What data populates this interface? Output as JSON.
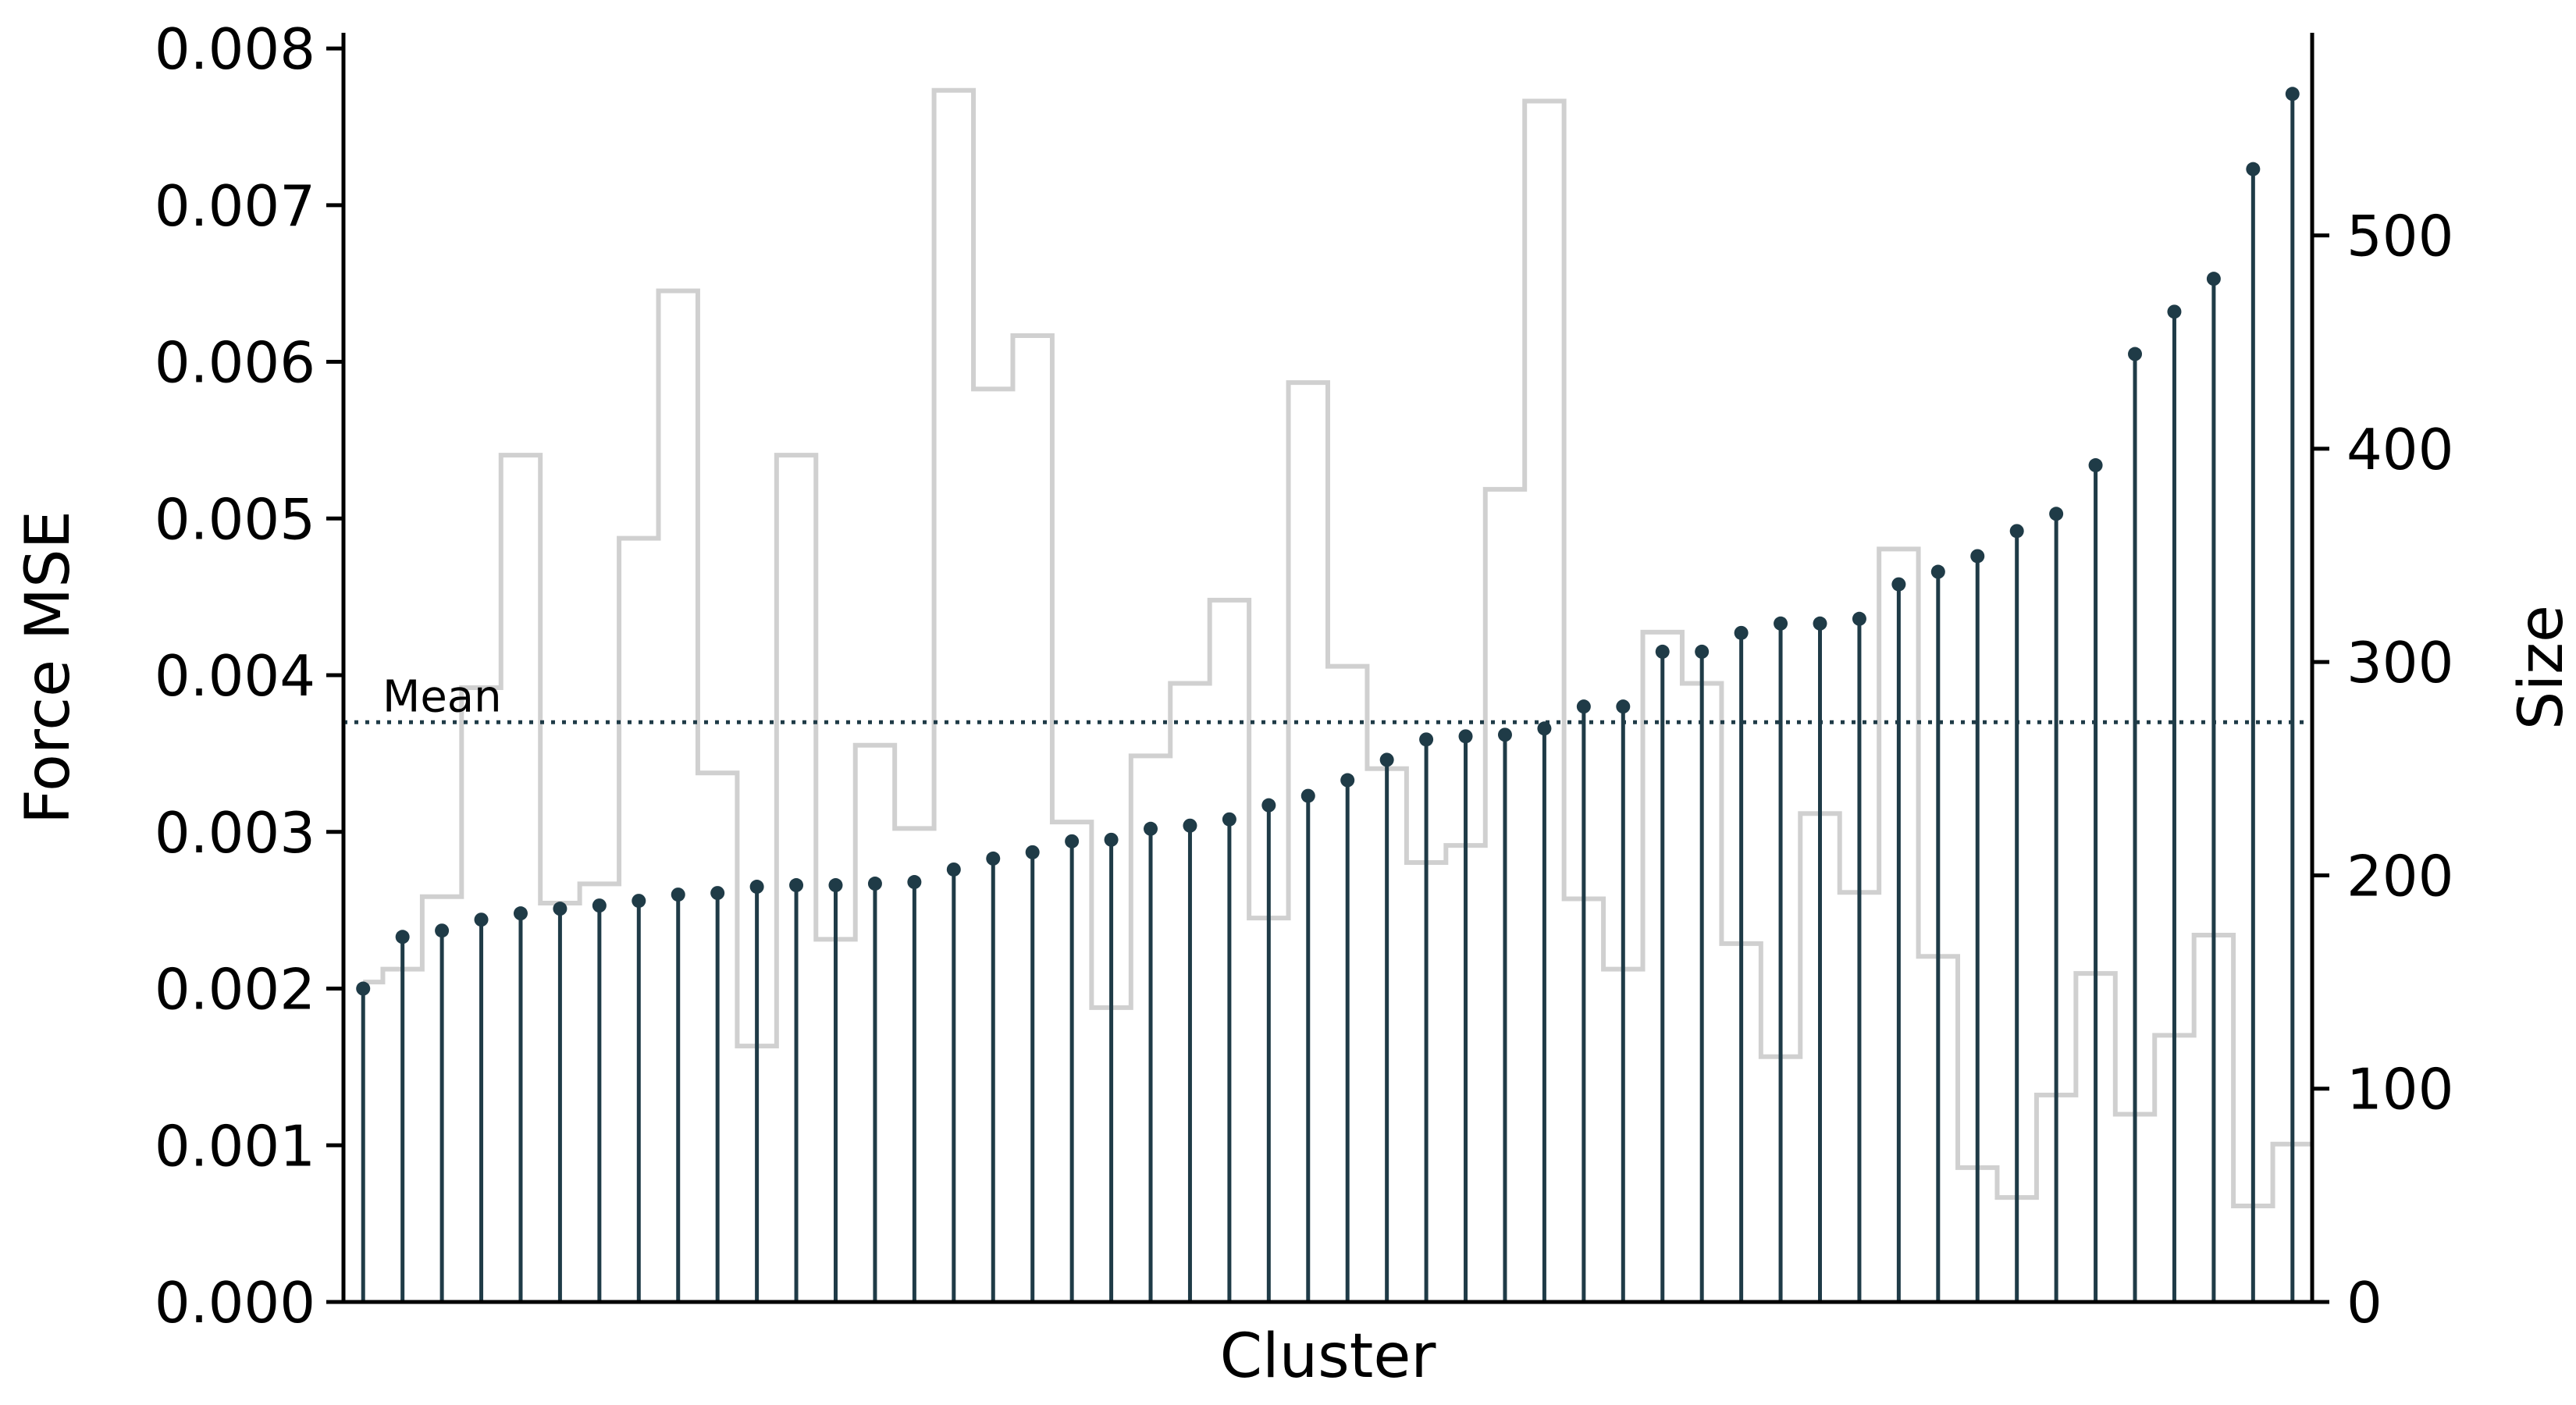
{
  "chart_data": {
    "type": "stem",
    "title": "",
    "xlabel": "Cluster",
    "ylabel": "Force MSE",
    "ylabel_right": "Size",
    "ylim": [
      0,
      0.0081
    ],
    "ylim_right": [
      0,
      595
    ],
    "yticks": [
      0,
      0.001,
      0.002,
      0.003,
      0.004,
      0.005,
      0.006,
      0.007,
      0.008
    ],
    "ytick_labels": [
      "0.000",
      "0.001",
      "0.002",
      "0.003",
      "0.004",
      "0.005",
      "0.006",
      "0.007",
      "0.008"
    ],
    "yticks_right": [
      0,
      100,
      200,
      300,
      400,
      500
    ],
    "ytick_labels_right": [
      "0",
      "100",
      "200",
      "300",
      "400",
      "500"
    ],
    "grid": false,
    "mean": {
      "label": "Mean",
      "value": 0.0037
    },
    "colors": {
      "stem": "#1f3b47",
      "size_step": "#d0d0d0",
      "mean_line": "#1f3b47"
    },
    "series": [
      {
        "axis": "left",
        "style": "stem",
        "values": [
          0.002,
          0.00233,
          0.00237,
          0.00244,
          0.00248,
          0.00251,
          0.00253,
          0.00256,
          0.0026,
          0.00261,
          0.00265,
          0.00266,
          0.00266,
          0.00267,
          0.00268,
          0.00276,
          0.00283,
          0.00287,
          0.00294,
          0.00295,
          0.00302,
          0.00304,
          0.00308,
          0.00317,
          0.00323,
          0.00333,
          0.00346,
          0.00359,
          0.00361,
          0.00362,
          0.00366,
          0.0038,
          0.0038,
          0.00415,
          0.00415,
          0.00427,
          0.00433,
          0.00433,
          0.00436,
          0.00458,
          0.00466,
          0.00476,
          0.00492,
          0.00503,
          0.00534,
          0.00605,
          0.00632,
          0.00653,
          0.00723,
          0.00771
        ]
      },
      {
        "axis": "right",
        "style": "step",
        "values": [
          150,
          156,
          190,
          288,
          397,
          187,
          196,
          358,
          474,
          248,
          120,
          397,
          170,
          261,
          222,
          568,
          428,
          453,
          225,
          138,
          256,
          290,
          329,
          180,
          431,
          298,
          250,
          206,
          214,
          381,
          563,
          189,
          156,
          314,
          290,
          168,
          115,
          229,
          192,
          353,
          162,
          63,
          49,
          97,
          154,
          88,
          125,
          172,
          45,
          74
        ]
      }
    ]
  }
}
